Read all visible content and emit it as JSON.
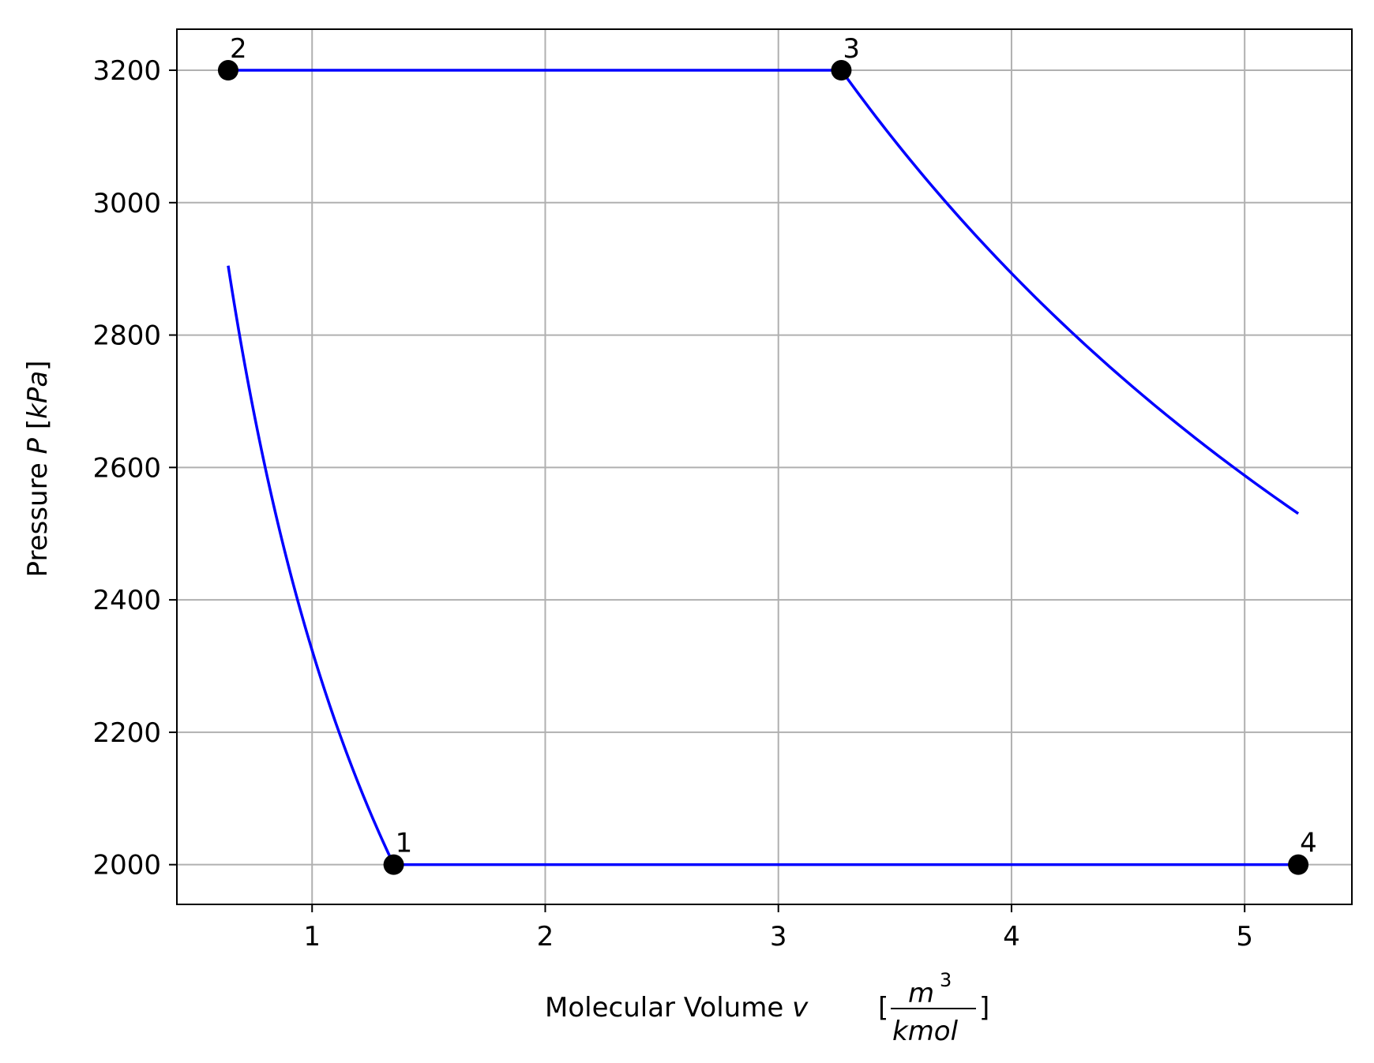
{
  "chart_data": {
    "type": "line",
    "title": "",
    "xlabel": {
      "prefix": "Molecular Volume ",
      "symbol": "v",
      "bracket_open": "[",
      "fraction_numerator": "m",
      "numerator_superscript": "3",
      "fraction_denominator": "kmol",
      "bracket_close": "]"
    },
    "ylabel": {
      "prefix": "Pressure ",
      "symbol": "P",
      "bracket_open": " [",
      "unit": "kPa",
      "bracket_close": "]"
    },
    "xlim": [
      0.42,
      5.46
    ],
    "ylim": [
      1940,
      3262
    ],
    "xticks": [
      1,
      2,
      3,
      4,
      5
    ],
    "xtick_labels": [
      "1",
      "2",
      "3",
      "4",
      "5"
    ],
    "yticks": [
      2000,
      2200,
      2400,
      2600,
      2800,
      3000,
      3200
    ],
    "ytick_labels": [
      "2000",
      "2200",
      "2400",
      "2600",
      "2800",
      "3000",
      "3200"
    ],
    "grid": true,
    "line_color": "#0000ff",
    "marker_color": "#000000",
    "points": [
      {
        "label": "1",
        "v": 1.35,
        "p": 2000
      },
      {
        "label": "2",
        "v": 0.64,
        "p": 3200
      },
      {
        "label": "3",
        "v": 3.27,
        "p": 3200
      },
      {
        "label": "4",
        "v": 5.23,
        "p": 2000
      }
    ],
    "series": [
      {
        "process": "1-2",
        "curve": "polytropic",
        "exponent": 0.5,
        "from": {
          "v": 1.35,
          "p": 2000
        },
        "to": {
          "v": 0.64,
          "p": 3200
        }
      },
      {
        "process": "2-3",
        "curve": "isobaric",
        "from": {
          "v": 0.64,
          "p": 3200
        },
        "to": {
          "v": 3.27,
          "p": 3200
        }
      },
      {
        "process": "3-4",
        "curve": "polytropic",
        "exponent": 0.5,
        "from": {
          "v": 3.27,
          "p": 3200
        },
        "to": {
          "v": 5.23,
          "p": 2000
        }
      },
      {
        "process": "4-1",
        "curve": "isobaric",
        "from": {
          "v": 5.23,
          "p": 2000
        },
        "to": {
          "v": 1.35,
          "p": 2000
        }
      }
    ]
  }
}
